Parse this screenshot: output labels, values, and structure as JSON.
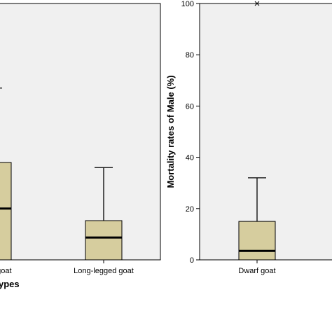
{
  "chart_data": [
    {
      "type": "box",
      "xlabel": "Goat types",
      "categories": [
        "Dwarf goat",
        "Long-legged goat"
      ],
      "boxes": [
        {
          "min": 0,
          "q1": 0,
          "median": 20,
          "q3": 38,
          "max": 67
        },
        {
          "min": 0,
          "q1": 0,
          "median": 8.7,
          "q3": 15.3,
          "max": 36
        }
      ],
      "ylim": [
        0,
        100
      ],
      "color": "#d6cd9e",
      "background": "#f0f0f0"
    },
    {
      "type": "box",
      "ylabel": "Mortality rates of Male (%)",
      "categories": [
        "Dwarf goat"
      ],
      "boxes": [
        {
          "min": 0,
          "q1": 0,
          "median": 3.5,
          "q3": 15,
          "max": 32,
          "outliers": [
            100
          ]
        }
      ],
      "ylim": [
        0,
        100
      ],
      "yticks": [
        0,
        20,
        40,
        60,
        80,
        100
      ],
      "color": "#d6cd9e",
      "background": "#f0f0f0"
    }
  ]
}
